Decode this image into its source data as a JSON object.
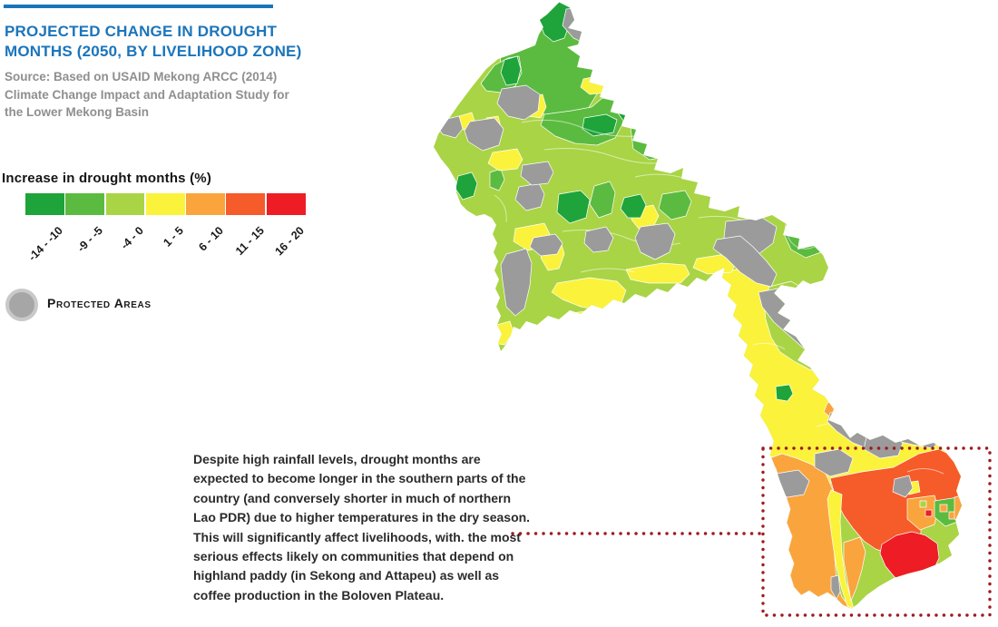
{
  "header": {
    "title_line1": "PROJECTED CHANGE IN DROUGHT",
    "title_line2": "MONTHS (2050, BY LIVELIHOOD ZONE)",
    "source_lines": [
      "Source: Based on USAID Mekong ARCC (2014)",
      "Climate Change Impact and Adaptation Study for",
      "the Lower Mekong Basin"
    ]
  },
  "legend": {
    "title": "Increase in drought months (%)",
    "classes": [
      {
        "label": "-14 - -10",
        "color": "#1EA43A"
      },
      {
        "label": "-9 - -5",
        "color": "#5BBB40"
      },
      {
        "label": "-4 - 0",
        "color": "#A9D445"
      },
      {
        "label": "1 - 5",
        "color": "#FBF23C"
      },
      {
        "label": "6 - 10",
        "color": "#FAA43E"
      },
      {
        "label": "11 - 15",
        "color": "#F65B2A"
      },
      {
        "label": "16 - 20",
        "color": "#EE1C25"
      }
    ],
    "protected_label": "Protected Areas",
    "protected_color": "#9B9B9B"
  },
  "annotation": {
    "text": "Despite high rainfall levels, drought months are expected to become longer in the southern parts of the country (and conversely shorter in much of northern Lao PDR) due to higher temperatures in the dry season. This will significantly affect livelihoods, with. the most serious effects likely on communities that depend on highland paddy (in Sekong and Attapeu) as well as coffee production in the Boloven Plateau.",
    "dot_color": "#9E1B1E"
  },
  "colors": {
    "accent_blue": "#1B75BB"
  }
}
